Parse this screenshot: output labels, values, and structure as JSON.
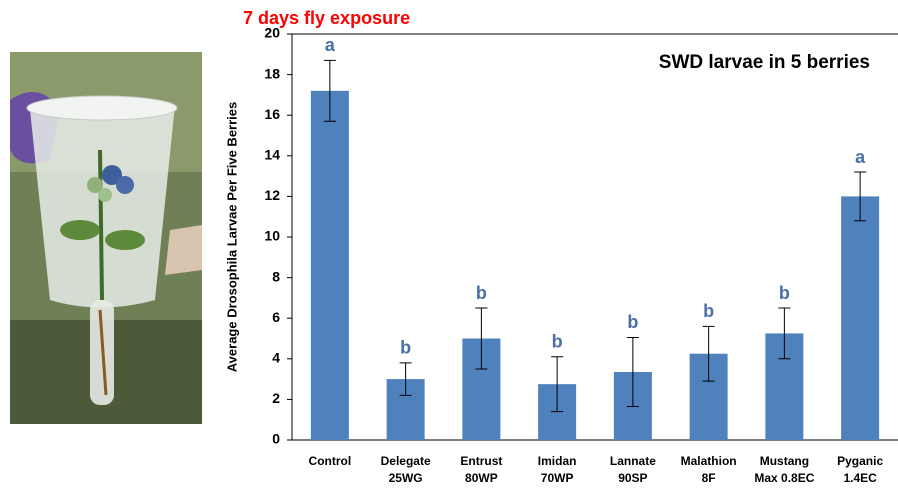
{
  "chart_data": {
    "type": "bar",
    "title": "7 days fly exposure",
    "subtitle": "SWD larvae in 5 berries",
    "y_label": "Average Drosophila Larvae Per Five Berries",
    "categories": [
      [
        "Control"
      ],
      [
        "Delegate",
        "25WG"
      ],
      [
        "Entrust",
        "80WP"
      ],
      [
        "Imidan",
        "70WP"
      ],
      [
        "Lannate",
        "90SP"
      ],
      [
        "Malathion",
        "8F"
      ],
      [
        "Mustang",
        "Max 0.8EC"
      ],
      [
        "Pyganic",
        "1.4EC"
      ]
    ],
    "values": [
      17.2,
      3.0,
      5.0,
      2.75,
      3.35,
      4.25,
      5.25,
      12.0
    ],
    "errors": [
      1.5,
      0.8,
      1.5,
      1.35,
      1.7,
      1.35,
      1.25,
      1.2
    ],
    "letters": [
      "a",
      "b",
      "b",
      "b",
      "b",
      "b",
      "b",
      "a"
    ],
    "color": "#4f81bd",
    "ylim": [
      0,
      20
    ],
    "yticks": [
      0,
      2,
      4,
      6,
      8,
      10,
      12,
      14,
      16,
      18,
      20
    ]
  }
}
